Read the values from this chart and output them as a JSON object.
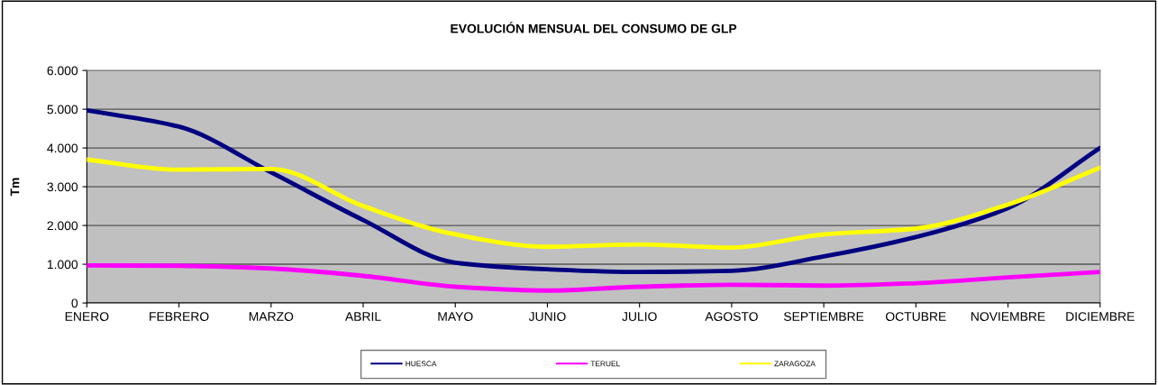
{
  "chart_data": {
    "type": "line",
    "title": "EVOLUCIÓN MENSUAL DEL CONSUMO DE GLP",
    "ylabel": "Tm",
    "categories": [
      "ENERO",
      "FEBRERO",
      "MARZO",
      "ABRIL",
      "MAYO",
      "JUNIO",
      "JULIO",
      "AGOSTO",
      "SEPTIEMBRE",
      "OCTUBRE",
      "NOVIEMBRE",
      "DICIEMBRE"
    ],
    "series": [
      {
        "name": "HUESCA",
        "color": "#000080",
        "values": [
          4970,
          4550,
          3370,
          2140,
          1040,
          870,
          800,
          830,
          1200,
          1700,
          2450,
          4000
        ]
      },
      {
        "name": "TERUEL",
        "color": "#ff00ff",
        "values": [
          970,
          960,
          890,
          700,
          420,
          320,
          420,
          470,
          450,
          510,
          660,
          800
        ]
      },
      {
        "name": "ZARAGOZA",
        "color": "#ffff00",
        "values": [
          3700,
          3440,
          3460,
          2500,
          1770,
          1450,
          1510,
          1430,
          1770,
          1920,
          2540,
          3490
        ]
      }
    ],
    "ylim": [
      0,
      6000
    ],
    "yticks": [
      {
        "value": 0,
        "label": "0"
      },
      {
        "value": 1000,
        "label": "1.000"
      },
      {
        "value": 2000,
        "label": "2.000"
      },
      {
        "value": 3000,
        "label": "3.000"
      },
      {
        "value": 4000,
        "label": "4.000"
      },
      {
        "value": 5000,
        "label": "5.000"
      },
      {
        "value": 6000,
        "label": "6.000"
      }
    ],
    "grid": "y",
    "legend": "bottom",
    "marker": "none",
    "line_style": "solid"
  }
}
